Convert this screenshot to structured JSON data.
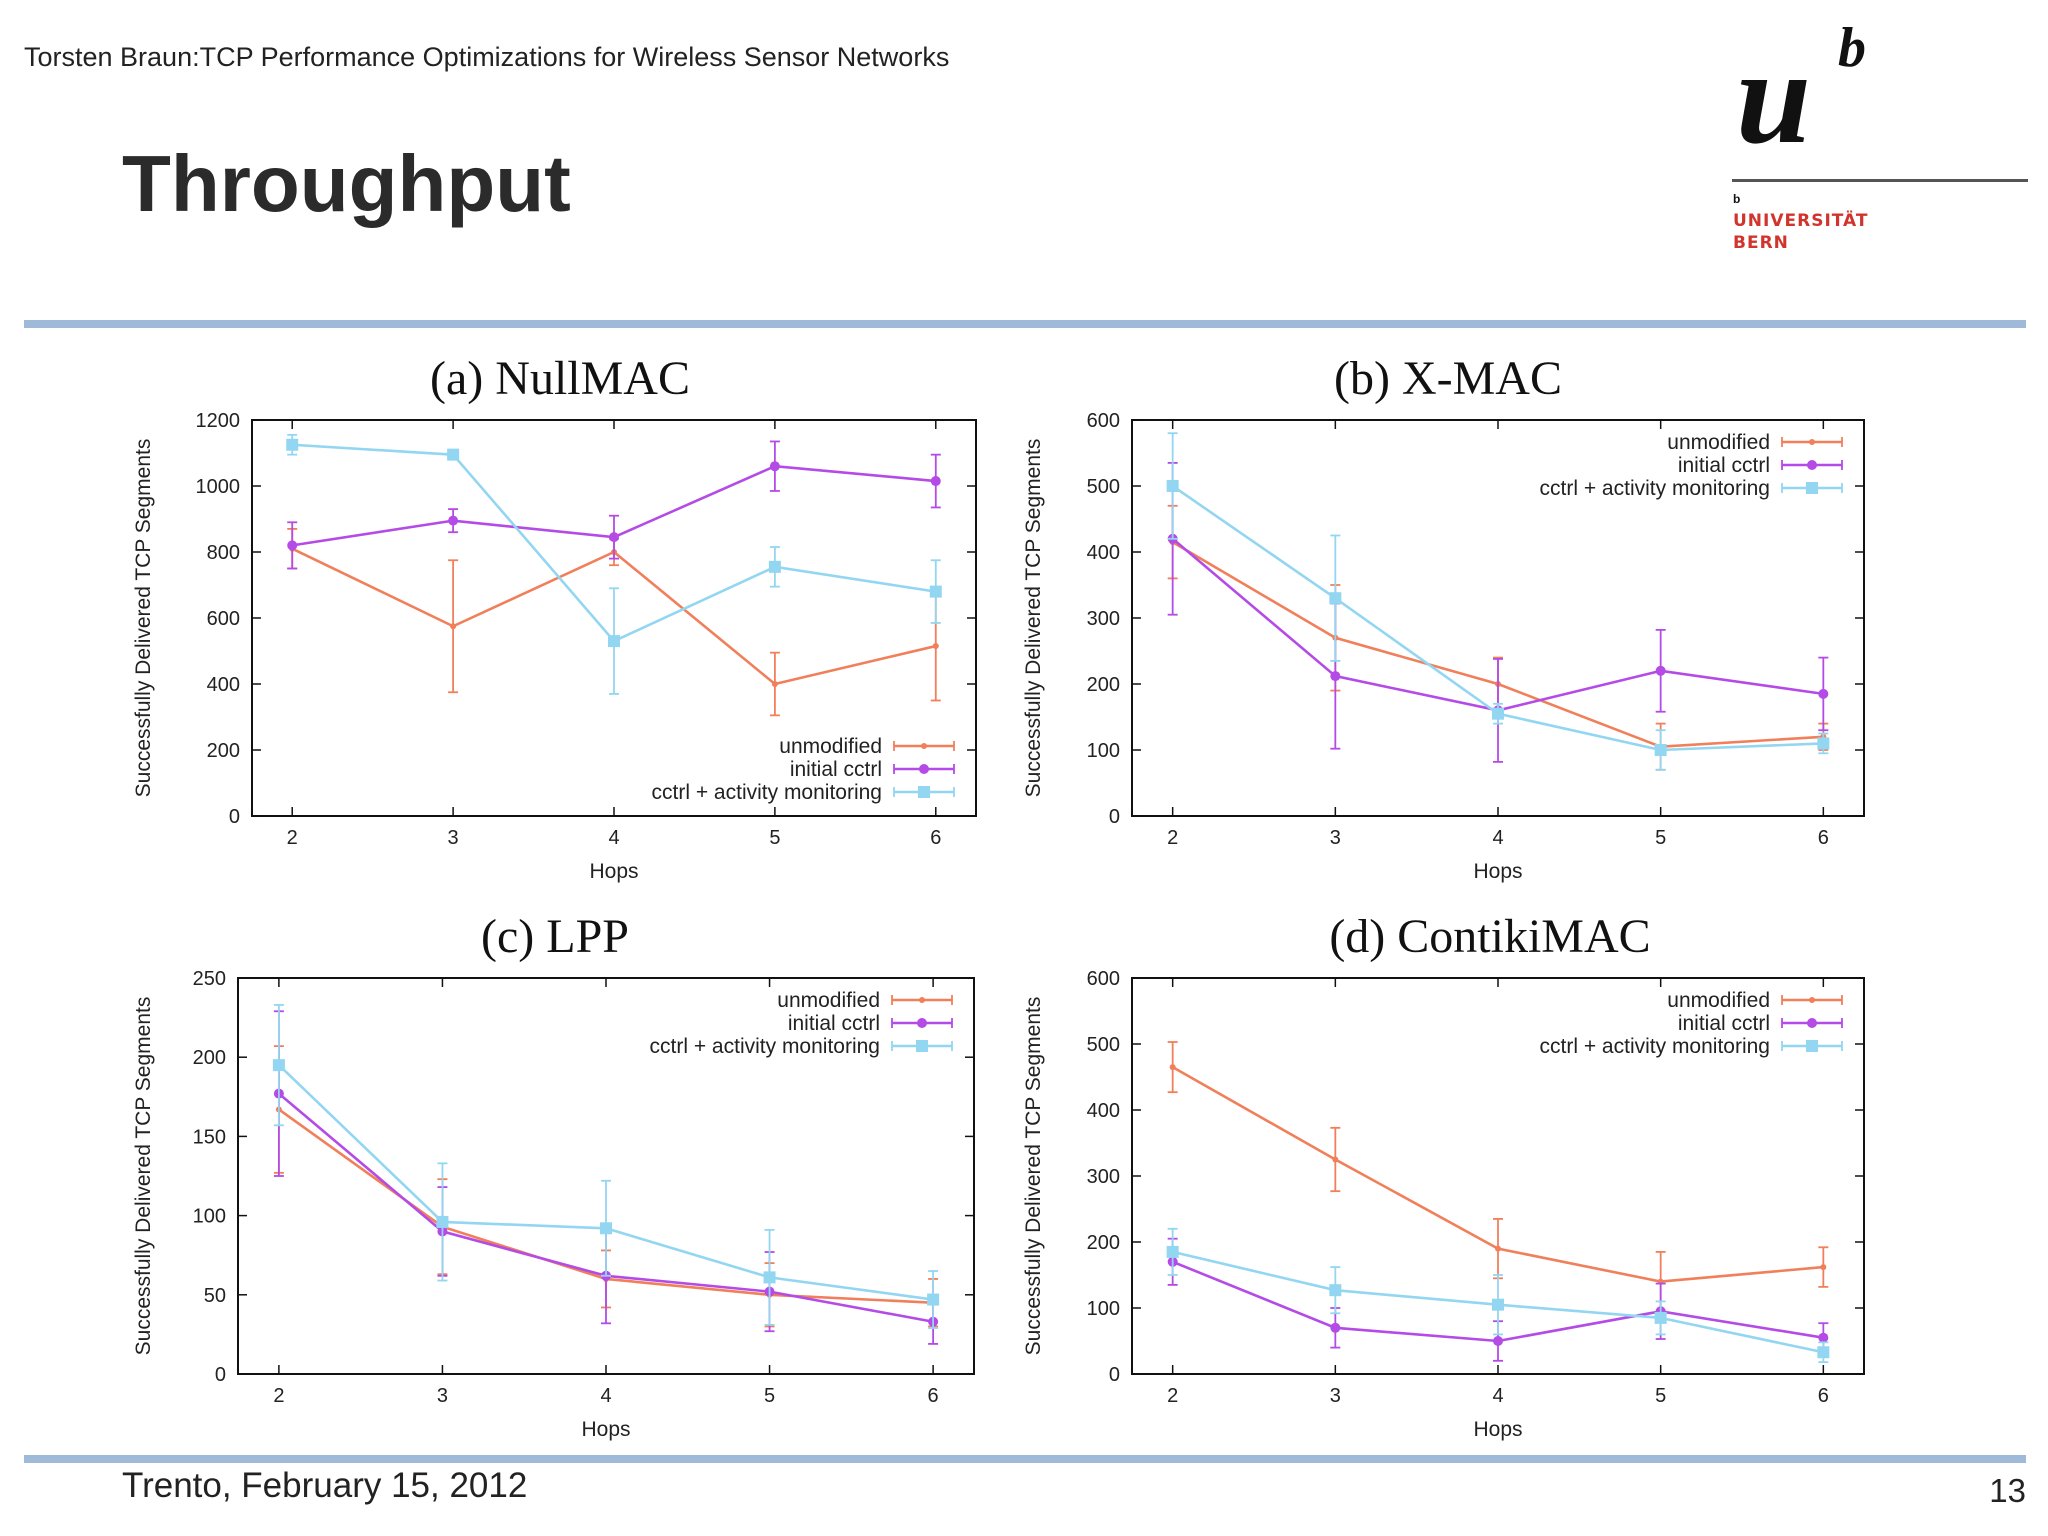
{
  "header": {
    "text": "Torsten Braun:TCP Performance Optimizations for Wireless Sensor Networks",
    "title": "Throughput"
  },
  "logo": {
    "u": "u",
    "b": "b",
    "small_b": "b",
    "line1": "UNIVERSITÄT",
    "line2": "BERN"
  },
  "footer": {
    "date": "Trento, February 15, 2012",
    "page": "13"
  },
  "colors": {
    "unmodified": "#f07f5a",
    "initial_cctrl": "#b44be6",
    "cctrl_activity": "#93d6f2"
  },
  "chart_data": [
    {
      "type": "line",
      "title": "(a) NullMAC",
      "xlabel": "Hops",
      "ylabel": "Successfully Delivered TCP Segments",
      "x": [
        2,
        3,
        4,
        5,
        6
      ],
      "xlim": [
        1.75,
        6.25
      ],
      "ylim": [
        0,
        1200
      ],
      "yticks": [
        0,
        200,
        400,
        600,
        800,
        1000,
        1200
      ],
      "legend_position": "bottom-right",
      "series": [
        {
          "name": "unmodified",
          "values": [
            810,
            575,
            800,
            400,
            515
          ],
          "err": [
            60,
            200,
            40,
            95,
            165
          ]
        },
        {
          "name": "initial cctrl",
          "values": [
            820,
            895,
            845,
            1060,
            1015
          ],
          "err": [
            70,
            35,
            65,
            75,
            80
          ]
        },
        {
          "name": "cctrl + activity monitoring",
          "values": [
            1125,
            1095,
            530,
            755,
            680
          ],
          "err": [
            30,
            10,
            160,
            60,
            95
          ]
        }
      ]
    },
    {
      "type": "line",
      "title": "(b) X-MAC",
      "xlabel": "Hops",
      "ylabel": "Successfully Delivered TCP Segments",
      "x": [
        2,
        3,
        4,
        5,
        6
      ],
      "xlim": [
        1.75,
        6.25
      ],
      "ylim": [
        0,
        600
      ],
      "yticks": [
        0,
        100,
        200,
        300,
        400,
        500,
        600
      ],
      "legend_position": "top-right",
      "series": [
        {
          "name": "unmodified",
          "values": [
            415,
            270,
            200,
            105,
            120
          ],
          "err": [
            55,
            80,
            40,
            35,
            20
          ]
        },
        {
          "name": "initial cctrl",
          "values": [
            420,
            212,
            160,
            220,
            185
          ],
          "err": [
            115,
            110,
            78,
            62,
            55
          ]
        },
        {
          "name": "cctrl + activity monitoring",
          "values": [
            500,
            330,
            155,
            100,
            110
          ],
          "err": [
            80,
            95,
            15,
            30,
            15
          ]
        }
      ]
    },
    {
      "type": "line",
      "title": "(c) LPP",
      "xlabel": "Hops",
      "ylabel": "Successfully Delivered TCP Segments",
      "x": [
        2,
        3,
        4,
        5,
        6
      ],
      "xlim": [
        1.75,
        6.25
      ],
      "ylim": [
        0,
        250
      ],
      "yticks": [
        0,
        50,
        100,
        150,
        200,
        250
      ],
      "legend_position": "top-right",
      "series": [
        {
          "name": "unmodified",
          "values": [
            167,
            93,
            60,
            50,
            45
          ],
          "err": [
            40,
            30,
            18,
            20,
            15
          ]
        },
        {
          "name": "initial cctrl",
          "values": [
            177,
            90,
            62,
            52,
            33
          ],
          "err": [
            52,
            28,
            30,
            25,
            14
          ]
        },
        {
          "name": "cctrl + activity monitoring",
          "values": [
            195,
            96,
            92,
            61,
            47
          ],
          "err": [
            38,
            37,
            30,
            30,
            18
          ]
        }
      ]
    },
    {
      "type": "line",
      "title": "(d) ContikiMAC",
      "xlabel": "Hops",
      "ylabel": "Successfully Delivered TCP Segments",
      "x": [
        2,
        3,
        4,
        5,
        6
      ],
      "xlim": [
        1.75,
        6.25
      ],
      "ylim": [
        0,
        600
      ],
      "yticks": [
        0,
        100,
        200,
        300,
        400,
        500,
        600
      ],
      "legend_position": "top-right",
      "series": [
        {
          "name": "unmodified",
          "values": [
            465,
            325,
            190,
            140,
            162
          ],
          "err": [
            38,
            48,
            45,
            45,
            30
          ]
        },
        {
          "name": "initial cctrl",
          "values": [
            170,
            70,
            50,
            95,
            55
          ],
          "err": [
            35,
            30,
            30,
            42,
            22
          ]
        },
        {
          "name": "cctrl + activity monitoring",
          "values": [
            185,
            127,
            105,
            85,
            33
          ],
          "err": [
            35,
            35,
            45,
            25,
            15
          ]
        }
      ]
    }
  ]
}
